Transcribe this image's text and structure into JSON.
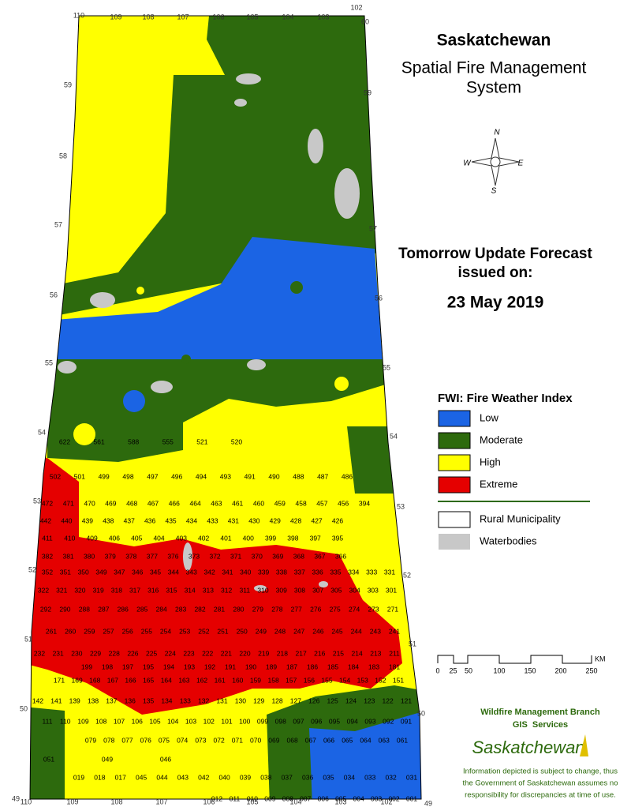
{
  "title": {
    "line1": "Saskatchewan",
    "line2": "Spatial Fire Management",
    "line3": "System"
  },
  "forecast": {
    "line1": "Tomorrow Update Forecast",
    "line2": "issued on:",
    "date": "23 May 2019"
  },
  "legend": {
    "title": "FWI: Fire Weather Index",
    "items": [
      {
        "label": "Low",
        "color": "#1b64e4"
      },
      {
        "label": "Moderate",
        "color": "#2d6a0d"
      },
      {
        "label": "High",
        "color": "#ffff00"
      },
      {
        "label": "Extreme",
        "color": "#e50000"
      }
    ],
    "rural": "Rural Municipality",
    "water": "Waterbodies"
  },
  "scale": {
    "ticks": [
      0,
      25,
      50,
      100,
      150,
      200,
      250
    ],
    "unit": "KM"
  },
  "compass": [
    "N",
    "E",
    "S",
    "W"
  ],
  "longitude_labels": {
    "top": [
      110,
      109,
      108,
      107,
      106,
      105,
      104,
      103,
      102,
      60
    ],
    "bottom": [
      110,
      109,
      108,
      107,
      106,
      105,
      104,
      103,
      102,
      49
    ]
  },
  "latitude_labels": {
    "left": [
      59,
      58,
      57,
      56,
      55,
      54,
      53,
      52,
      51,
      50,
      49
    ],
    "right": [
      59,
      57,
      56,
      55,
      54,
      53,
      52,
      51,
      50
    ]
  },
  "rm_rows": [
    [
      "012",
      "011",
      "010",
      "009",
      "008",
      "007",
      "006",
      "005",
      "004",
      "003",
      "002",
      "001"
    ],
    [
      "019",
      "018",
      "017",
      "045",
      "044",
      "043",
      "042",
      "040",
      "039",
      "038",
      "037",
      "036",
      "035",
      "034",
      "033",
      "032",
      "031"
    ],
    [
      "051",
      "049",
      "046"
    ],
    [
      "079",
      "078",
      "077",
      "076",
      "075",
      "074",
      "073",
      "072",
      "071",
      "070",
      "069",
      "068",
      "067",
      "066",
      "065",
      "064",
      "063",
      "061"
    ],
    [
      "111",
      "110",
      "109",
      "108",
      "107",
      "106",
      "105",
      "104",
      "103",
      "102",
      "101",
      "100",
      "099",
      "098",
      "097",
      "096",
      "095",
      "094",
      "093",
      "092",
      "091"
    ],
    [
      "142",
      "141",
      "139",
      "138",
      "137",
      "136",
      "135",
      "134",
      "133",
      "132",
      "131",
      "130",
      "129",
      "128",
      "127",
      "126",
      "125",
      "124",
      "123",
      "122",
      "121"
    ],
    [
      "171",
      "169",
      "168",
      "167",
      "166",
      "165",
      "164",
      "163",
      "162",
      "161",
      "160",
      "159",
      "158",
      "157",
      "156",
      "155",
      "154",
      "153",
      "152",
      "151"
    ],
    [
      "199",
      "198",
      "197",
      "195",
      "194",
      "193",
      "192",
      "191",
      "190",
      "189",
      "187",
      "186",
      "185",
      "184",
      "183",
      "181"
    ],
    [
      "232",
      "231",
      "230",
      "229",
      "228",
      "226",
      "225",
      "224",
      "223",
      "222",
      "221",
      "220",
      "219",
      "218",
      "217",
      "216",
      "215",
      "214",
      "213",
      "211"
    ],
    [
      "261",
      "260",
      "259",
      "257",
      "256",
      "255",
      "254",
      "253",
      "252",
      "251",
      "250",
      "249",
      "248",
      "247",
      "246",
      "245",
      "244",
      "243",
      "241"
    ],
    [
      "292",
      "290",
      "288",
      "287",
      "286",
      "285",
      "284",
      "283",
      "282",
      "281",
      "280",
      "279",
      "278",
      "277",
      "276",
      "275",
      "274",
      "273",
      "271"
    ],
    [
      "322",
      "321",
      "320",
      "319",
      "318",
      "317",
      "316",
      "315",
      "314",
      "313",
      "312",
      "311",
      "310",
      "309",
      "308",
      "307",
      "305",
      "304",
      "303",
      "301"
    ],
    [
      "352",
      "351",
      "350",
      "349",
      "347",
      "346",
      "345",
      "344",
      "343",
      "342",
      "341",
      "340",
      "339",
      "338",
      "337",
      "336",
      "335",
      "334",
      "333",
      "331"
    ],
    [
      "382",
      "381",
      "380",
      "379",
      "378",
      "377",
      "376",
      "373",
      "372",
      "371",
      "370",
      "369",
      "368",
      "367",
      "366"
    ],
    [
      "411",
      "410",
      "409",
      "406",
      "405",
      "404",
      "403",
      "402",
      "401",
      "400",
      "399",
      "398",
      "397",
      "395"
    ],
    [
      "442",
      "440",
      "439",
      "438",
      "437",
      "436",
      "435",
      "434",
      "433",
      "431",
      "430",
      "429",
      "428",
      "427",
      "426"
    ],
    [
      "472",
      "471",
      "470",
      "469",
      "468",
      "467",
      "466",
      "464",
      "463",
      "461",
      "460",
      "459",
      "458",
      "457",
      "456",
      "394"
    ],
    [
      "502",
      "501",
      "499",
      "498",
      "497",
      "496",
      "494",
      "493",
      "491",
      "490",
      "488",
      "487",
      "486"
    ],
    [
      "622",
      "561",
      "588",
      "555",
      "521",
      "520"
    ]
  ],
  "footer": {
    "branch": "Wildfire Management Branch",
    "gis": "GIS  Services",
    "logo": "Saskatchewan",
    "disclaimer": [
      "Information depicted is subject to change, thus",
      "the Government of Saskatchewan assumes no",
      "responsibility for discrepancies at time of use."
    ]
  }
}
